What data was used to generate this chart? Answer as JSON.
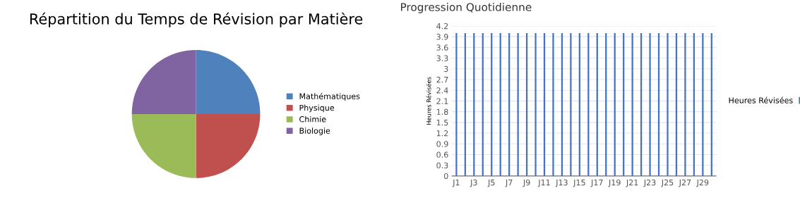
{
  "chart_data": [
    {
      "type": "pie",
      "title": "Répartition du Temps de Révision par Matière",
      "categories": [
        "Mathématiques",
        "Physique",
        "Chimie",
        "Biologie"
      ],
      "values": [
        25,
        25,
        25,
        25
      ],
      "colors": [
        "#4f81bd",
        "#c0504d",
        "#9bbb59",
        "#8064a2"
      ],
      "legend": "right"
    },
    {
      "type": "bar",
      "title": "Progression Quotidienne",
      "ylabel": "Heures Révisées",
      "categories": [
        "J1",
        null,
        "J3",
        null,
        "J5",
        null,
        "J7",
        null,
        "J9",
        null,
        "J11",
        null,
        "J13",
        null,
        "J15",
        null,
        "J17",
        null,
        "J19",
        null,
        "J21",
        null,
        "J23",
        null,
        "J25",
        null,
        "J27",
        null,
        "J29",
        null
      ],
      "series": [
        {
          "name": "Heures Révisées",
          "color": "#4472c4",
          "values": [
            4,
            4,
            4,
            4,
            4,
            4,
            4,
            4,
            4,
            4,
            4,
            4,
            4,
            4,
            4,
            4,
            4,
            4,
            4,
            4,
            4,
            4,
            4,
            4,
            4,
            4,
            4,
            4,
            4,
            4
          ]
        }
      ],
      "ylim": [
        0,
        4.2
      ],
      "yticks": [
        0,
        0.3,
        0.6,
        0.9,
        1.2,
        1.5,
        1.8,
        2.1,
        2.4,
        2.7,
        3,
        3.3,
        3.6,
        3.9,
        4.2
      ],
      "grid": "y",
      "legend": "right"
    }
  ]
}
